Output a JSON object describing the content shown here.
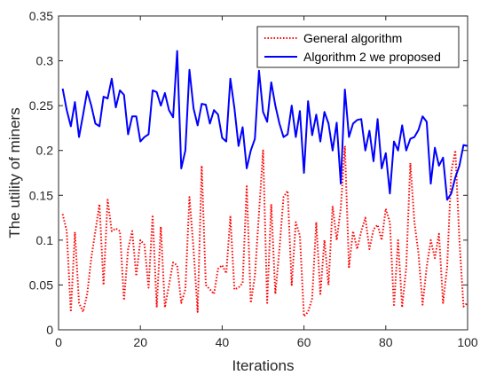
{
  "chart_data": {
    "type": "line",
    "xlabel": "Iterations",
    "ylabel": "The utility of miners",
    "xlim": [
      0,
      100
    ],
    "ylim": [
      0,
      0.35
    ],
    "xticks": [
      0,
      20,
      40,
      60,
      80,
      100
    ],
    "yticks": [
      0,
      0.05,
      0.1,
      0.15,
      0.2,
      0.25,
      0.3,
      0.35
    ],
    "ytick_labels": [
      "0",
      "0.05",
      "0.1",
      "0.15",
      "0.2",
      "0.25",
      "0.3",
      "0.35"
    ],
    "grid": false,
    "legend_position": "top-right",
    "series": [
      {
        "name": "General algorithm",
        "color": "#ff0000",
        "style": "dotted",
        "x": [
          1,
          2,
          3,
          4,
          5,
          6,
          7,
          8,
          9,
          10,
          11,
          12,
          13,
          14,
          15,
          16,
          17,
          18,
          19,
          20,
          21,
          22,
          23,
          24,
          25,
          26,
          27,
          28,
          29,
          30,
          31,
          32,
          33,
          34,
          35,
          36,
          37,
          38,
          39,
          40,
          41,
          42,
          43,
          44,
          45,
          46,
          47,
          48,
          49,
          50,
          51,
          52,
          53,
          54,
          55,
          56,
          57,
          58,
          59,
          60,
          61,
          62,
          63,
          64,
          65,
          66,
          67,
          68,
          69,
          70,
          71,
          72,
          73,
          74,
          75,
          76,
          77,
          78,
          79,
          80,
          81,
          82,
          83,
          84,
          85,
          86,
          87,
          88,
          89,
          90,
          91,
          92,
          93,
          94,
          95,
          96,
          97,
          98,
          99,
          100
        ],
        "values": [
          0.129,
          0.11,
          0.02,
          0.109,
          0.03,
          0.02,
          0.04,
          0.08,
          0.11,
          0.14,
          0.05,
          0.145,
          0.11,
          0.113,
          0.11,
          0.033,
          0.09,
          0.11,
          0.06,
          0.1,
          0.095,
          0.047,
          0.128,
          0.025,
          0.115,
          0.025,
          0.05,
          0.075,
          0.072,
          0.03,
          0.045,
          0.148,
          0.09,
          0.02,
          0.183,
          0.05,
          0.045,
          0.04,
          0.068,
          0.072,
          0.063,
          0.126,
          0.045,
          0.047,
          0.052,
          0.16,
          0.03,
          0.06,
          0.13,
          0.2,
          0.03,
          0.14,
          0.04,
          0.09,
          0.148,
          0.155,
          0.05,
          0.12,
          0.105,
          0.015,
          0.02,
          0.035,
          0.12,
          0.04,
          0.1,
          0.05,
          0.138,
          0.1,
          0.136,
          0.205,
          0.07,
          0.11,
          0.09,
          0.11,
          0.125,
          0.09,
          0.112,
          0.117,
          0.1,
          0.135,
          0.12,
          0.026,
          0.1,
          0.025,
          0.07,
          0.186,
          0.12,
          0.085,
          0.028,
          0.07,
          0.1,
          0.08,
          0.107,
          0.03,
          0.07,
          0.176,
          0.2,
          0.1,
          0.026,
          0.03
        ]
      },
      {
        "name": "Algorithm 2 we proposed",
        "color": "#0000ff",
        "style": "solid",
        "x": [
          1,
          2,
          3,
          4,
          5,
          6,
          7,
          8,
          9,
          10,
          11,
          12,
          13,
          14,
          15,
          16,
          17,
          18,
          19,
          20,
          21,
          22,
          23,
          24,
          25,
          26,
          27,
          28,
          29,
          30,
          31,
          32,
          33,
          34,
          35,
          36,
          37,
          38,
          39,
          40,
          41,
          42,
          43,
          44,
          45,
          46,
          47,
          48,
          49,
          50,
          51,
          52,
          53,
          54,
          55,
          56,
          57,
          58,
          59,
          60,
          61,
          62,
          63,
          64,
          65,
          66,
          67,
          68,
          69,
          70,
          71,
          72,
          73,
          74,
          75,
          76,
          77,
          78,
          79,
          80,
          81,
          82,
          83,
          84,
          85,
          86,
          87,
          88,
          89,
          90,
          91,
          92,
          93,
          94,
          95,
          96,
          97,
          98,
          99,
          100
        ],
        "values": [
          0.269,
          0.245,
          0.227,
          0.254,
          0.215,
          0.24,
          0.266,
          0.25,
          0.23,
          0.227,
          0.26,
          0.258,
          0.28,
          0.248,
          0.267,
          0.262,
          0.218,
          0.238,
          0.238,
          0.21,
          0.215,
          0.218,
          0.267,
          0.265,
          0.25,
          0.264,
          0.245,
          0.237,
          0.311,
          0.18,
          0.2,
          0.29,
          0.247,
          0.228,
          0.252,
          0.251,
          0.23,
          0.245,
          0.24,
          0.214,
          0.21,
          0.28,
          0.247,
          0.205,
          0.226,
          0.18,
          0.2,
          0.213,
          0.289,
          0.243,
          0.232,
          0.276,
          0.25,
          0.23,
          0.215,
          0.218,
          0.25,
          0.215,
          0.244,
          0.175,
          0.255,
          0.217,
          0.24,
          0.21,
          0.243,
          0.23,
          0.2,
          0.231,
          0.163,
          0.268,
          0.215,
          0.23,
          0.234,
          0.235,
          0.2,
          0.222,
          0.188,
          0.235,
          0.18,
          0.197,
          0.152,
          0.21,
          0.2,
          0.228,
          0.2,
          0.213,
          0.215,
          0.223,
          0.238,
          0.232,
          0.163,
          0.203,
          0.183,
          0.192,
          0.145,
          0.152,
          0.17,
          0.183,
          0.206,
          0.205
        ]
      }
    ]
  }
}
